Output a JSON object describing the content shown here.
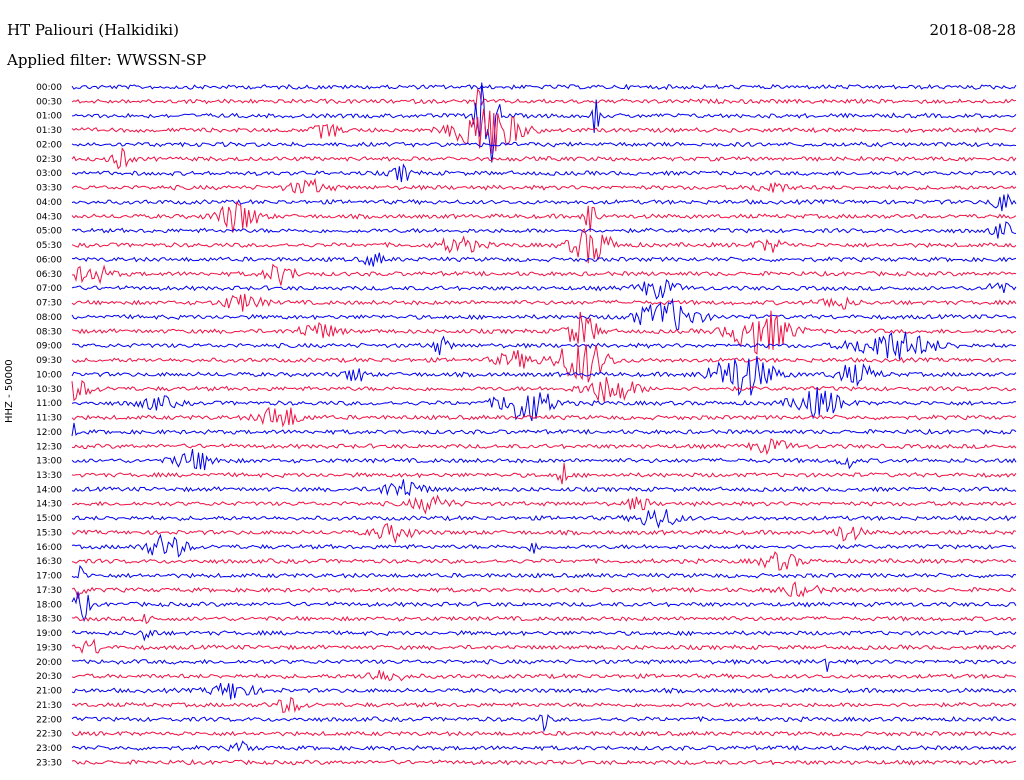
{
  "header": {
    "station": "HT Paliouri (Halkidiki)",
    "filter": "Applied filter: WWSSN-SP",
    "date": "2018-08-28"
  },
  "chart_data": {
    "type": "line",
    "title": "HT Paliouri (Halkidiki)",
    "subtitle": "Applied filter: WWSSN-SP",
    "date": "2018-08-28",
    "ylabel": "HHZ - 50000",
    "xlabel": "",
    "row_labels": [
      "00:00",
      "00:30",
      "01:00",
      "01:30",
      "02:00",
      "02:30",
      "03:00",
      "03:30",
      "04:00",
      "04:30",
      "05:00",
      "05:30",
      "06:00",
      "06:30",
      "07:00",
      "07:30",
      "08:00",
      "08:30",
      "09:00",
      "09:30",
      "10:00",
      "10:30",
      "11:00",
      "11:30",
      "12:00",
      "12:30",
      "13:00",
      "13:30",
      "14:00",
      "14:30",
      "15:00",
      "15:30",
      "16:00",
      "16:30",
      "17:00",
      "17:30",
      "18:00",
      "18:30",
      "19:00",
      "19:30",
      "20:00",
      "20:30",
      "21:00",
      "21:30",
      "22:00",
      "22:30",
      "23:00",
      "23:30"
    ],
    "colors": [
      "#0000ee",
      "#ee1144"
    ],
    "grid": false,
    "legend": "none",
    "events": [
      {
        "row": 1,
        "pos": 0.43,
        "amp": 18,
        "width": 0.003
      },
      {
        "row": 3,
        "pos": 0.27,
        "amp": 8,
        "width": 0.012
      },
      {
        "row": 3,
        "pos": 0.44,
        "amp": 28,
        "width": 0.03
      },
      {
        "row": 2,
        "pos": 0.44,
        "amp": 60,
        "width": 0.01
      },
      {
        "row": 2,
        "pos": 0.555,
        "amp": 20,
        "width": 0.004
      },
      {
        "row": 5,
        "pos": 0.05,
        "amp": 10,
        "width": 0.01
      },
      {
        "row": 6,
        "pos": 0.35,
        "amp": 8,
        "width": 0.01
      },
      {
        "row": 7,
        "pos": 0.25,
        "amp": 7,
        "width": 0.02
      },
      {
        "row": 7,
        "pos": 0.74,
        "amp": 6,
        "width": 0.015
      },
      {
        "row": 8,
        "pos": 0.985,
        "amp": 9,
        "width": 0.01
      },
      {
        "row": 9,
        "pos": 0.175,
        "amp": 16,
        "width": 0.02
      },
      {
        "row": 9,
        "pos": 0.55,
        "amp": 22,
        "width": 0.006
      },
      {
        "row": 10,
        "pos": 0.985,
        "amp": 8,
        "width": 0.01
      },
      {
        "row": 11,
        "pos": 0.55,
        "amp": 18,
        "width": 0.02
      },
      {
        "row": 11,
        "pos": 0.41,
        "amp": 8,
        "width": 0.02
      },
      {
        "row": 11,
        "pos": 0.74,
        "amp": 6,
        "width": 0.015
      },
      {
        "row": 12,
        "pos": 0.32,
        "amp": 7,
        "width": 0.01
      },
      {
        "row": 13,
        "pos": 0.02,
        "amp": 9,
        "width": 0.02
      },
      {
        "row": 13,
        "pos": 0.22,
        "amp": 10,
        "width": 0.015
      },
      {
        "row": 14,
        "pos": 0.62,
        "amp": 9,
        "width": 0.02
      },
      {
        "row": 14,
        "pos": 0.98,
        "amp": 8,
        "width": 0.01
      },
      {
        "row": 15,
        "pos": 0.18,
        "amp": 8,
        "width": 0.02
      },
      {
        "row": 15,
        "pos": 0.81,
        "amp": 7,
        "width": 0.015
      },
      {
        "row": 16,
        "pos": 0.63,
        "amp": 16,
        "width": 0.03
      },
      {
        "row": 17,
        "pos": 0.73,
        "amp": 22,
        "width": 0.03
      },
      {
        "row": 17,
        "pos": 0.54,
        "amp": 18,
        "width": 0.015
      },
      {
        "row": 17,
        "pos": 0.26,
        "amp": 8,
        "width": 0.02
      },
      {
        "row": 18,
        "pos": 0.87,
        "amp": 14,
        "width": 0.04
      },
      {
        "row": 18,
        "pos": 0.39,
        "amp": 8,
        "width": 0.01
      },
      {
        "row": 19,
        "pos": 0.54,
        "amp": 22,
        "width": 0.025
      },
      {
        "row": 19,
        "pos": 0.47,
        "amp": 8,
        "width": 0.02
      },
      {
        "row": 20,
        "pos": 0.71,
        "amp": 22,
        "width": 0.03
      },
      {
        "row": 20,
        "pos": 0.83,
        "amp": 10,
        "width": 0.02
      },
      {
        "row": 20,
        "pos": 0.3,
        "amp": 8,
        "width": 0.01
      },
      {
        "row": 21,
        "pos": 0.57,
        "amp": 14,
        "width": 0.025
      },
      {
        "row": 21,
        "pos": 0.0,
        "amp": 10,
        "width": 0.02
      },
      {
        "row": 22,
        "pos": 0.48,
        "amp": 20,
        "width": 0.025
      },
      {
        "row": 22,
        "pos": 0.79,
        "amp": 14,
        "width": 0.025
      },
      {
        "row": 22,
        "pos": 0.09,
        "amp": 6,
        "width": 0.02
      },
      {
        "row": 23,
        "pos": 0.22,
        "amp": 12,
        "width": 0.02
      },
      {
        "row": 24,
        "pos": 0.0,
        "amp": 12,
        "width": 0.004
      },
      {
        "row": 25,
        "pos": 0.74,
        "amp": 6,
        "width": 0.02
      },
      {
        "row": 26,
        "pos": 0.13,
        "amp": 10,
        "width": 0.02
      },
      {
        "row": 26,
        "pos": 0.82,
        "amp": 10,
        "width": 0.006
      },
      {
        "row": 27,
        "pos": 0.52,
        "amp": 18,
        "width": 0.004
      },
      {
        "row": 28,
        "pos": 0.35,
        "amp": 10,
        "width": 0.02
      },
      {
        "row": 29,
        "pos": 0.38,
        "amp": 8,
        "width": 0.02
      },
      {
        "row": 29,
        "pos": 0.6,
        "amp": 8,
        "width": 0.01
      },
      {
        "row": 30,
        "pos": 0.62,
        "amp": 10,
        "width": 0.02
      },
      {
        "row": 31,
        "pos": 0.34,
        "amp": 8,
        "width": 0.02
      },
      {
        "row": 31,
        "pos": 0.82,
        "amp": 8,
        "width": 0.015
      },
      {
        "row": 32,
        "pos": 0.1,
        "amp": 12,
        "width": 0.02
      },
      {
        "row": 32,
        "pos": 0.49,
        "amp": 7,
        "width": 0.005
      },
      {
        "row": 33,
        "pos": 0.75,
        "amp": 8,
        "width": 0.02
      },
      {
        "row": 34,
        "pos": 0.01,
        "amp": 10,
        "width": 0.004
      },
      {
        "row": 35,
        "pos": 0.01,
        "amp": 14,
        "width": 0.004
      },
      {
        "row": 35,
        "pos": 0.77,
        "amp": 6,
        "width": 0.02
      },
      {
        "row": 36,
        "pos": 0.01,
        "amp": 16,
        "width": 0.008
      },
      {
        "row": 37,
        "pos": 0.08,
        "amp": 10,
        "width": 0.004
      },
      {
        "row": 38,
        "pos": 0.08,
        "amp": 14,
        "width": 0.005
      },
      {
        "row": 39,
        "pos": 0.02,
        "amp": 8,
        "width": 0.01
      },
      {
        "row": 40,
        "pos": 0.8,
        "amp": 12,
        "width": 0.003
      },
      {
        "row": 41,
        "pos": 0.33,
        "amp": 6,
        "width": 0.02
      },
      {
        "row": 42,
        "pos": 0.17,
        "amp": 9,
        "width": 0.02
      },
      {
        "row": 43,
        "pos": 0.23,
        "amp": 7,
        "width": 0.015
      },
      {
        "row": 44,
        "pos": 0.5,
        "amp": 20,
        "width": 0.003
      },
      {
        "row": 46,
        "pos": 0.18,
        "amp": 5,
        "width": 0.01
      }
    ]
  }
}
